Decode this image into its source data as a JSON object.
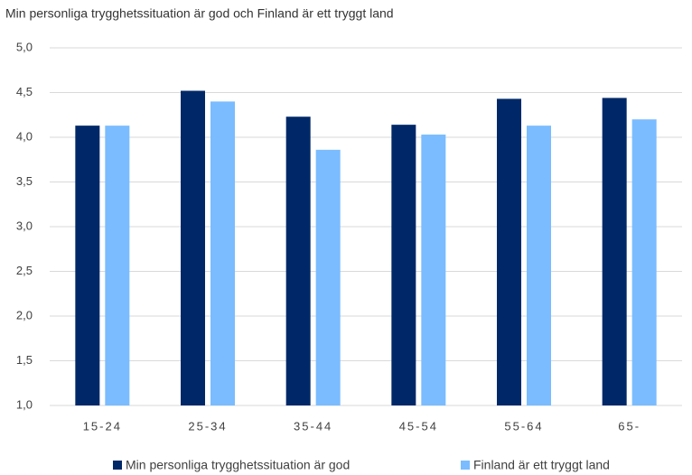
{
  "chart_data": {
    "type": "bar",
    "title": "Min personliga trygghetssituation är god och Finland är ett tryggt land",
    "categories": [
      "15-24",
      "25-34",
      "35-44",
      "45-54",
      "55-64",
      "65-"
    ],
    "series": [
      {
        "name": "Min personliga trygghetssituation är god",
        "color": "#002868",
        "values": [
          4.13,
          4.52,
          4.23,
          4.14,
          4.43,
          4.44
        ]
      },
      {
        "name": "Finland är ett tryggt land",
        "color": "#7abcff",
        "values": [
          4.13,
          4.4,
          3.86,
          4.03,
          4.13,
          4.2
        ]
      }
    ],
    "ylim": [
      1.0,
      5.0
    ],
    "yticks": [
      {
        "value": 1.0,
        "label": "1,0"
      },
      {
        "value": 1.5,
        "label": "1,5"
      },
      {
        "value": 2.0,
        "label": "2,0"
      },
      {
        "value": 2.5,
        "label": "2,5"
      },
      {
        "value": 3.0,
        "label": "3,0"
      },
      {
        "value": 3.5,
        "label": "3,5"
      },
      {
        "value": 4.0,
        "label": "4,0"
      },
      {
        "value": 4.5,
        "label": "4,5"
      },
      {
        "value": 5.0,
        "label": "5,0"
      }
    ],
    "grid": true,
    "legend": "bottom"
  }
}
